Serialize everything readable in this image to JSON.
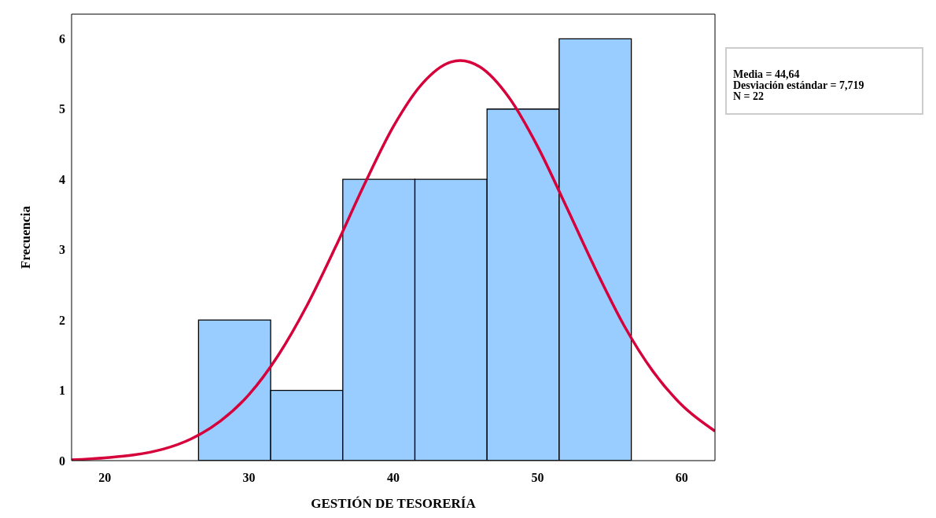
{
  "chart_data": {
    "type": "histogram",
    "xlabel": "GESTIÓN DE TESORERÍA",
    "ylabel": "Frecuencia",
    "bins": [
      26.5,
      31.5,
      36.5,
      41.5,
      46.5,
      51.5,
      56.5
    ],
    "values": [
      2,
      1,
      4,
      4,
      5,
      6
    ],
    "color": "#99ccff",
    "series": [
      {
        "type": "line",
        "color": "#d6003b",
        "x": [
          17.7,
          20,
          22,
          24,
          26,
          28,
          30,
          32,
          34,
          36,
          38,
          40,
          42,
          44,
          44.64,
          46,
          48,
          50,
          52,
          54,
          56,
          58,
          60,
          62.3
        ],
        "values": [
          0.01,
          0.04,
          0.08,
          0.16,
          0.31,
          0.56,
          0.94,
          1.49,
          2.2,
          3.04,
          3.93,
          4.75,
          5.36,
          5.67,
          5.69,
          5.6,
          5.17,
          4.47,
          3.61,
          2.73,
          1.92,
          1.27,
          0.79,
          0.42
        ]
      }
    ],
    "xlim": [
      17.7,
      62.3
    ],
    "xticks": [
      20,
      30,
      40,
      50,
      60
    ],
    "ylim": [
      0,
      6.35
    ],
    "yticks": [
      0,
      1,
      2,
      3,
      4,
      5,
      6
    ],
    "grid": false,
    "legend": false,
    "marker": "none",
    "line_style": "solid",
    "annotations": [
      "Media = 44,64",
      "Desviación estándar = 7,719",
      "N = 22"
    ]
  }
}
